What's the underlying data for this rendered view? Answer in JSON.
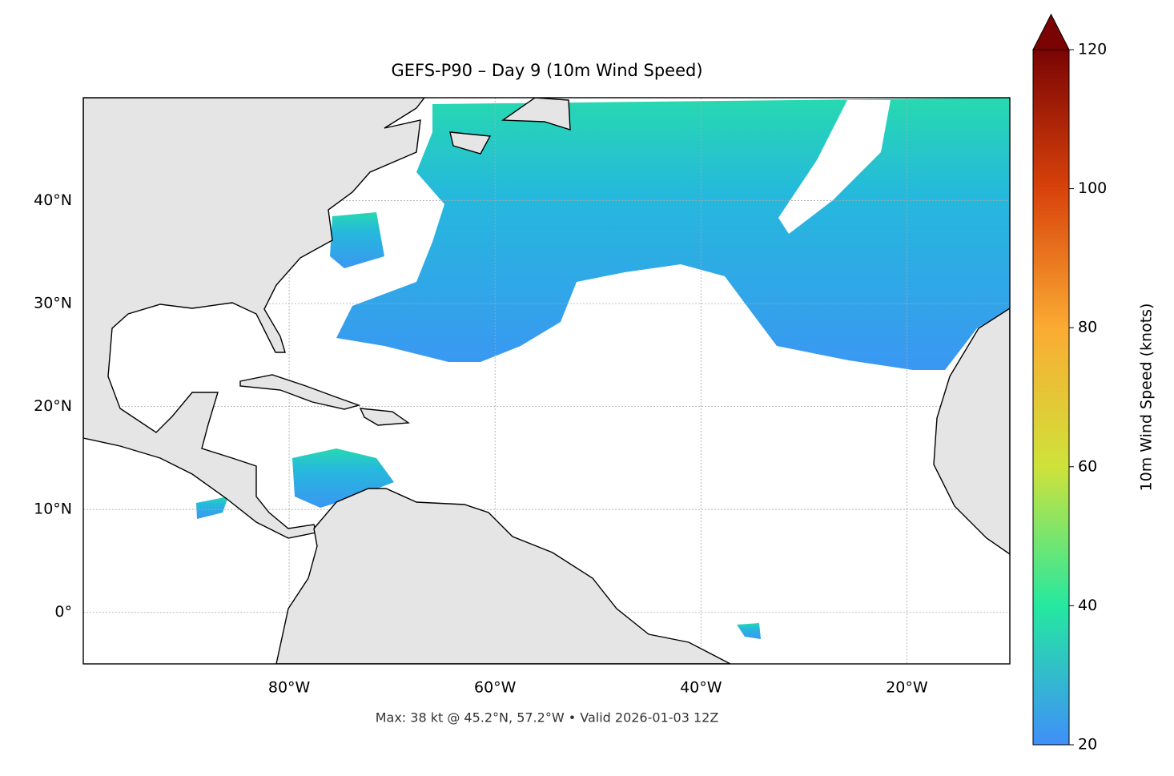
{
  "map": {
    "title": "GEFS-P90 – Day 9 (10m Wind Speed)",
    "footer": "Max: 38 kt @ 45.2°N, 57.2°W • Valid 2026-01-03 12Z",
    "lon_range": [
      -100,
      -10
    ],
    "lat_range": [
      -5,
      50
    ],
    "lon_ticks": [
      {
        "value": -80,
        "label": "80°W"
      },
      {
        "value": -60,
        "label": "60°W"
      },
      {
        "value": -40,
        "label": "40°W"
      },
      {
        "value": -20,
        "label": "20°W"
      }
    ],
    "lat_ticks": [
      {
        "value": 0,
        "label": "0°"
      },
      {
        "value": 10,
        "label": "10°N"
      },
      {
        "value": 20,
        "label": "20°N"
      },
      {
        "value": 30,
        "label": "30°N"
      },
      {
        "value": 40,
        "label": "40°N"
      }
    ],
    "grid": true,
    "colorbar": {
      "label": "10m Wind Speed (knots)",
      "range": [
        20,
        120
      ],
      "ticks": [
        20,
        40,
        60,
        80,
        100,
        120
      ],
      "colors": [
        "#3f8ff9",
        "#25e8a0",
        "#cfe23a",
        "#fbab33",
        "#d8420b",
        "#7a0403"
      ]
    }
  }
}
